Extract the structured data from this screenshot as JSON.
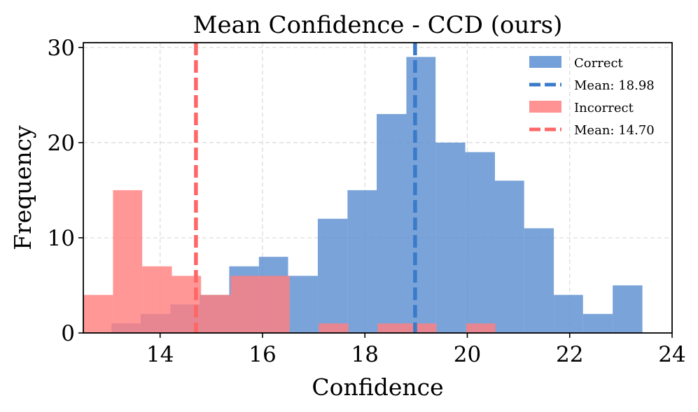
{
  "chart_data": {
    "type": "histogram",
    "title": "Mean Confidence - CCD (ours)",
    "xlabel": "Confidence",
    "ylabel": "Frequency",
    "xlim": [
      12.5,
      24
    ],
    "ylim": [
      0,
      30.5
    ],
    "xticks": [
      14,
      16,
      18,
      20,
      22,
      24
    ],
    "yticks": [
      0,
      10,
      20,
      30
    ],
    "grid": true,
    "legend_position": "top-right",
    "series": [
      {
        "name": "Correct",
        "color": "#5b8fd1",
        "bins": [
          {
            "x0": 13.05,
            "x1": 13.62,
            "count": 1
          },
          {
            "x0": 13.62,
            "x1": 14.2,
            "count": 2
          },
          {
            "x0": 14.2,
            "x1": 14.77,
            "count": 3
          },
          {
            "x0": 14.77,
            "x1": 15.35,
            "count": 4
          },
          {
            "x0": 15.35,
            "x1": 15.93,
            "count": 7
          },
          {
            "x0": 15.93,
            "x1": 16.5,
            "count": 8
          },
          {
            "x0": 16.5,
            "x1": 17.08,
            "count": 6
          },
          {
            "x0": 17.08,
            "x1": 17.66,
            "count": 12
          },
          {
            "x0": 17.66,
            "x1": 18.23,
            "count": 15
          },
          {
            "x0": 18.23,
            "x1": 18.81,
            "count": 23
          },
          {
            "x0": 18.81,
            "x1": 19.38,
            "count": 29
          },
          {
            "x0": 19.38,
            "x1": 19.96,
            "count": 20
          },
          {
            "x0": 19.96,
            "x1": 20.54,
            "count": 19
          },
          {
            "x0": 20.54,
            "x1": 21.11,
            "count": 16
          },
          {
            "x0": 21.11,
            "x1": 21.69,
            "count": 11
          },
          {
            "x0": 21.69,
            "x1": 22.26,
            "count": 4
          },
          {
            "x0": 22.26,
            "x1": 22.84,
            "count": 2
          },
          {
            "x0": 22.84,
            "x1": 23.42,
            "count": 5
          }
        ]
      },
      {
        "name": "Incorrect",
        "color": "#ff8080",
        "bins": [
          {
            "x0": 12.5,
            "x1": 13.08,
            "count": 4
          },
          {
            "x0": 13.08,
            "x1": 13.65,
            "count": 15
          },
          {
            "x0": 13.65,
            "x1": 14.23,
            "count": 7
          },
          {
            "x0": 14.23,
            "x1": 14.8,
            "count": 6
          },
          {
            "x0": 14.8,
            "x1": 15.38,
            "count": 4
          },
          {
            "x0": 15.38,
            "x1": 15.95,
            "count": 6
          },
          {
            "x0": 15.95,
            "x1": 16.53,
            "count": 6
          },
          {
            "x0": 16.53,
            "x1": 17.1,
            "count": 0
          },
          {
            "x0": 17.1,
            "x1": 17.68,
            "count": 1
          },
          {
            "x0": 17.68,
            "x1": 18.25,
            "count": 0
          },
          {
            "x0": 18.25,
            "x1": 18.83,
            "count": 1
          },
          {
            "x0": 18.83,
            "x1": 19.4,
            "count": 1
          },
          {
            "x0": 19.4,
            "x1": 19.98,
            "count": 0
          },
          {
            "x0": 19.98,
            "x1": 20.55,
            "count": 1
          }
        ]
      }
    ],
    "mean_lines": [
      {
        "label": "Mean: 18.98",
        "value": 18.98,
        "color": "#3a7ac9"
      },
      {
        "label": "Mean: 14.70",
        "value": 14.7,
        "color": "#ff6666"
      }
    ],
    "legend": [
      {
        "label": "Correct",
        "kind": "patch",
        "color": "#5b8fd1"
      },
      {
        "label": "Mean: 18.98",
        "kind": "line",
        "color": "#3a7ac9"
      },
      {
        "label": "Incorrect",
        "kind": "patch",
        "color": "#ff8080"
      },
      {
        "label": "Mean: 14.70",
        "kind": "line",
        "color": "#ff6666"
      }
    ]
  }
}
